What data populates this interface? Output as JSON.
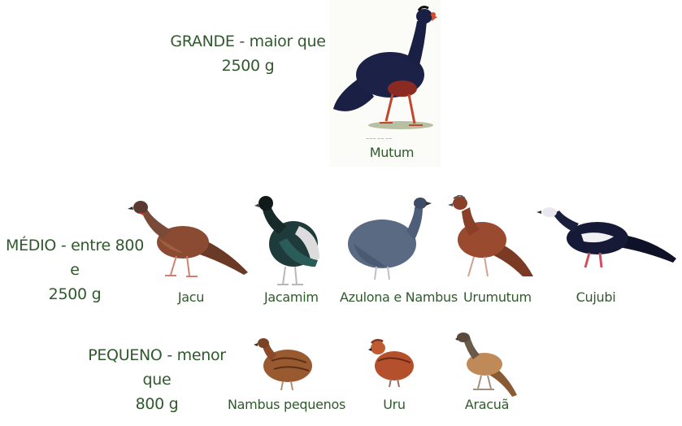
{
  "categories": {
    "grande": {
      "line1": "GRANDE - maior que",
      "line2": "2500 g"
    },
    "medio": {
      "line1": "MÉDIO - entre 800 e",
      "line2": "2500 g"
    },
    "pequeno": {
      "line1": "PEQUENO - menor que",
      "line2": "800 g"
    }
  },
  "birds": {
    "mutum": "Mutum",
    "jacu": "Jacu",
    "jacamim": "Jacamim",
    "azulona": "Azulona e Nambus",
    "urumutum": "Urumutum",
    "cujubi": "Cujubi",
    "nambus_pequenos": "Nambus pequenos",
    "uru": "Uru",
    "aracua": "Aracuã"
  },
  "colors": {
    "label_green": "#2f5a2c",
    "mutum_body": "#1c2148",
    "jacu_body": "#8a4b32",
    "jacamim_body": "#1f3a3a",
    "azulona_body": "#5a6a82",
    "urumutum_body": "#9a4a2e",
    "cujubi_body": "#161a36"
  }
}
